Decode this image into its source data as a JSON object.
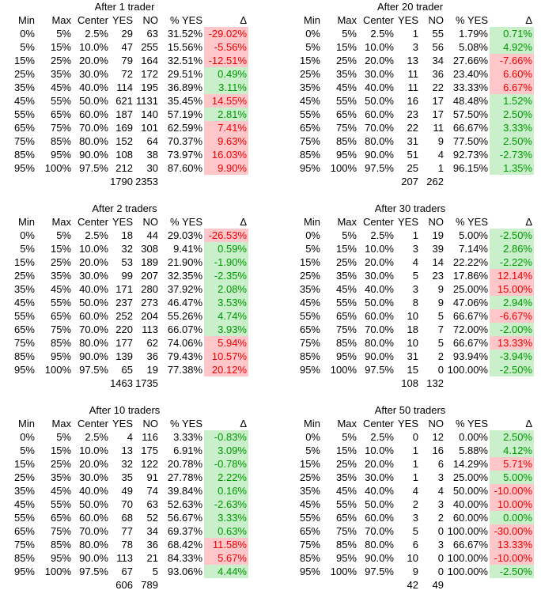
{
  "columns": [
    "Min",
    "Max",
    "Center",
    "YES",
    "NO",
    "% YES",
    "Δ"
  ],
  "colors": {
    "delta_good_bg": "#c9f0ca",
    "delta_good_text": "#009800",
    "delta_bad_bg": "#ffc7ca",
    "delta_bad_text": "#ee0000"
  },
  "tables": [
    {
      "title": "After 1 trader",
      "rows": [
        {
          "min": "0%",
          "max": "5%",
          "center": "2.5%",
          "yes": "29",
          "no": "63",
          "pct_yes": "31.52%",
          "delta": "-29.02%",
          "state": "bad"
        },
        {
          "min": "5%",
          "max": "15%",
          "center": "10.0%",
          "yes": "47",
          "no": "255",
          "pct_yes": "15.56%",
          "delta": "-5.56%",
          "state": "bad"
        },
        {
          "min": "15%",
          "max": "25%",
          "center": "20.0%",
          "yes": "79",
          "no": "164",
          "pct_yes": "32.51%",
          "delta": "-12.51%",
          "state": "bad"
        },
        {
          "min": "25%",
          "max": "35%",
          "center": "30.0%",
          "yes": "72",
          "no": "172",
          "pct_yes": "29.51%",
          "delta": "0.49%",
          "state": "good"
        },
        {
          "min": "35%",
          "max": "45%",
          "center": "40.0%",
          "yes": "114",
          "no": "195",
          "pct_yes": "36.89%",
          "delta": "3.11%",
          "state": "good"
        },
        {
          "min": "45%",
          "max": "55%",
          "center": "50.0%",
          "yes": "621",
          "no": "1131",
          "pct_yes": "35.45%",
          "delta": "14.55%",
          "state": "bad"
        },
        {
          "min": "55%",
          "max": "65%",
          "center": "60.0%",
          "yes": "187",
          "no": "140",
          "pct_yes": "57.19%",
          "delta": "2.81%",
          "state": "good"
        },
        {
          "min": "65%",
          "max": "75%",
          "center": "70.0%",
          "yes": "169",
          "no": "101",
          "pct_yes": "62.59%",
          "delta": "7.41%",
          "state": "bad"
        },
        {
          "min": "75%",
          "max": "85%",
          "center": "80.0%",
          "yes": "152",
          "no": "64",
          "pct_yes": "70.37%",
          "delta": "9.63%",
          "state": "bad"
        },
        {
          "min": "85%",
          "max": "95%",
          "center": "90.0%",
          "yes": "108",
          "no": "38",
          "pct_yes": "73.97%",
          "delta": "16.03%",
          "state": "bad"
        },
        {
          "min": "95%",
          "max": "100%",
          "center": "97.5%",
          "yes": "212",
          "no": "30",
          "pct_yes": "87.60%",
          "delta": "9.90%",
          "state": "bad"
        }
      ],
      "totals": {
        "yes": "1790",
        "no": "2353"
      }
    },
    {
      "title": "After 20 trader",
      "rows": [
        {
          "min": "0%",
          "max": "5%",
          "center": "2.5%",
          "yes": "1",
          "no": "55",
          "pct_yes": "1.79%",
          "delta": "0.71%",
          "state": "good"
        },
        {
          "min": "5%",
          "max": "15%",
          "center": "10.0%",
          "yes": "3",
          "no": "56",
          "pct_yes": "5.08%",
          "delta": "4.92%",
          "state": "good"
        },
        {
          "min": "15%",
          "max": "25%",
          "center": "20.0%",
          "yes": "13",
          "no": "34",
          "pct_yes": "27.66%",
          "delta": "-7.66%",
          "state": "bad"
        },
        {
          "min": "25%",
          "max": "35%",
          "center": "30.0%",
          "yes": "11",
          "no": "36",
          "pct_yes": "23.40%",
          "delta": "6.60%",
          "state": "bad"
        },
        {
          "min": "35%",
          "max": "45%",
          "center": "40.0%",
          "yes": "11",
          "no": "22",
          "pct_yes": "33.33%",
          "delta": "6.67%",
          "state": "bad"
        },
        {
          "min": "45%",
          "max": "55%",
          "center": "50.0%",
          "yes": "16",
          "no": "17",
          "pct_yes": "48.48%",
          "delta": "1.52%",
          "state": "good"
        },
        {
          "min": "55%",
          "max": "65%",
          "center": "60.0%",
          "yes": "23",
          "no": "17",
          "pct_yes": "57.50%",
          "delta": "2.50%",
          "state": "good"
        },
        {
          "min": "65%",
          "max": "75%",
          "center": "70.0%",
          "yes": "22",
          "no": "11",
          "pct_yes": "66.67%",
          "delta": "3.33%",
          "state": "good"
        },
        {
          "min": "75%",
          "max": "85%",
          "center": "80.0%",
          "yes": "31",
          "no": "9",
          "pct_yes": "77.50%",
          "delta": "2.50%",
          "state": "good"
        },
        {
          "min": "85%",
          "max": "95%",
          "center": "90.0%",
          "yes": "51",
          "no": "4",
          "pct_yes": "92.73%",
          "delta": "-2.73%",
          "state": "good"
        },
        {
          "min": "95%",
          "max": "100%",
          "center": "97.5%",
          "yes": "25",
          "no": "1",
          "pct_yes": "96.15%",
          "delta": "1.35%",
          "state": "good"
        }
      ],
      "totals": {
        "yes": "207",
        "no": "262"
      }
    },
    {
      "title": "After 2 traders",
      "rows": [
        {
          "min": "0%",
          "max": "5%",
          "center": "2.5%",
          "yes": "18",
          "no": "44",
          "pct_yes": "29.03%",
          "delta": "-26.53%",
          "state": "bad"
        },
        {
          "min": "5%",
          "max": "15%",
          "center": "10.0%",
          "yes": "32",
          "no": "308",
          "pct_yes": "9.41%",
          "delta": "0.59%",
          "state": "good"
        },
        {
          "min": "15%",
          "max": "25%",
          "center": "20.0%",
          "yes": "53",
          "no": "189",
          "pct_yes": "21.90%",
          "delta": "-1.90%",
          "state": "good"
        },
        {
          "min": "25%",
          "max": "35%",
          "center": "30.0%",
          "yes": "99",
          "no": "207",
          "pct_yes": "32.35%",
          "delta": "-2.35%",
          "state": "good"
        },
        {
          "min": "35%",
          "max": "45%",
          "center": "40.0%",
          "yes": "171",
          "no": "280",
          "pct_yes": "37.92%",
          "delta": "2.08%",
          "state": "good"
        },
        {
          "min": "45%",
          "max": "55%",
          "center": "50.0%",
          "yes": "237",
          "no": "273",
          "pct_yes": "46.47%",
          "delta": "3.53%",
          "state": "good"
        },
        {
          "min": "55%",
          "max": "65%",
          "center": "60.0%",
          "yes": "252",
          "no": "204",
          "pct_yes": "55.26%",
          "delta": "4.74%",
          "state": "good"
        },
        {
          "min": "65%",
          "max": "75%",
          "center": "70.0%",
          "yes": "220",
          "no": "113",
          "pct_yes": "66.07%",
          "delta": "3.93%",
          "state": "good"
        },
        {
          "min": "75%",
          "max": "85%",
          "center": "80.0%",
          "yes": "177",
          "no": "62",
          "pct_yes": "74.06%",
          "delta": "5.94%",
          "state": "bad"
        },
        {
          "min": "85%",
          "max": "95%",
          "center": "90.0%",
          "yes": "139",
          "no": "36",
          "pct_yes": "79.43%",
          "delta": "10.57%",
          "state": "bad"
        },
        {
          "min": "95%",
          "max": "100%",
          "center": "97.5%",
          "yes": "65",
          "no": "19",
          "pct_yes": "77.38%",
          "delta": "20.12%",
          "state": "bad"
        }
      ],
      "totals": {
        "yes": "1463",
        "no": "1735"
      }
    },
    {
      "title": "After 30 traders",
      "rows": [
        {
          "min": "0%",
          "max": "5%",
          "center": "2.5%",
          "yes": "1",
          "no": "19",
          "pct_yes": "5.00%",
          "delta": "-2.50%",
          "state": "good"
        },
        {
          "min": "5%",
          "max": "15%",
          "center": "10.0%",
          "yes": "3",
          "no": "39",
          "pct_yes": "7.14%",
          "delta": "2.86%",
          "state": "good"
        },
        {
          "min": "15%",
          "max": "25%",
          "center": "20.0%",
          "yes": "4",
          "no": "14",
          "pct_yes": "22.22%",
          "delta": "-2.22%",
          "state": "good"
        },
        {
          "min": "25%",
          "max": "35%",
          "center": "30.0%",
          "yes": "5",
          "no": "23",
          "pct_yes": "17.86%",
          "delta": "12.14%",
          "state": "bad"
        },
        {
          "min": "35%",
          "max": "45%",
          "center": "40.0%",
          "yes": "3",
          "no": "9",
          "pct_yes": "25.00%",
          "delta": "15.00%",
          "state": "bad"
        },
        {
          "min": "45%",
          "max": "55%",
          "center": "50.0%",
          "yes": "8",
          "no": "9",
          "pct_yes": "47.06%",
          "delta": "2.94%",
          "state": "good"
        },
        {
          "min": "55%",
          "max": "65%",
          "center": "60.0%",
          "yes": "10",
          "no": "5",
          "pct_yes": "66.67%",
          "delta": "-6.67%",
          "state": "bad"
        },
        {
          "min": "65%",
          "max": "75%",
          "center": "70.0%",
          "yes": "18",
          "no": "7",
          "pct_yes": "72.00%",
          "delta": "-2.00%",
          "state": "good"
        },
        {
          "min": "75%",
          "max": "85%",
          "center": "80.0%",
          "yes": "10",
          "no": "5",
          "pct_yes": "66.67%",
          "delta": "13.33%",
          "state": "bad"
        },
        {
          "min": "85%",
          "max": "95%",
          "center": "90.0%",
          "yes": "31",
          "no": "2",
          "pct_yes": "93.94%",
          "delta": "-3.94%",
          "state": "good"
        },
        {
          "min": "95%",
          "max": "100%",
          "center": "97.5%",
          "yes": "15",
          "no": "0",
          "pct_yes": "100.00%",
          "delta": "-2.50%",
          "state": "good"
        }
      ],
      "totals": {
        "yes": "108",
        "no": "132"
      }
    },
    {
      "title": "After 10 traders",
      "rows": [
        {
          "min": "0%",
          "max": "5%",
          "center": "2.5%",
          "yes": "4",
          "no": "116",
          "pct_yes": "3.33%",
          "delta": "-0.83%",
          "state": "good"
        },
        {
          "min": "5%",
          "max": "15%",
          "center": "10.0%",
          "yes": "13",
          "no": "175",
          "pct_yes": "6.91%",
          "delta": "3.09%",
          "state": "good"
        },
        {
          "min": "15%",
          "max": "25%",
          "center": "20.0%",
          "yes": "32",
          "no": "122",
          "pct_yes": "20.78%",
          "delta": "-0.78%",
          "state": "good"
        },
        {
          "min": "25%",
          "max": "35%",
          "center": "30.0%",
          "yes": "35",
          "no": "91",
          "pct_yes": "27.78%",
          "delta": "2.22%",
          "state": "good"
        },
        {
          "min": "35%",
          "max": "45%",
          "center": "40.0%",
          "yes": "49",
          "no": "74",
          "pct_yes": "39.84%",
          "delta": "0.16%",
          "state": "good"
        },
        {
          "min": "45%",
          "max": "55%",
          "center": "50.0%",
          "yes": "70",
          "no": "63",
          "pct_yes": "52.63%",
          "delta": "-2.63%",
          "state": "good"
        },
        {
          "min": "55%",
          "max": "65%",
          "center": "60.0%",
          "yes": "68",
          "no": "52",
          "pct_yes": "56.67%",
          "delta": "3.33%",
          "state": "good"
        },
        {
          "min": "65%",
          "max": "75%",
          "center": "70.0%",
          "yes": "77",
          "no": "34",
          "pct_yes": "69.37%",
          "delta": "0.63%",
          "state": "good"
        },
        {
          "min": "75%",
          "max": "85%",
          "center": "80.0%",
          "yes": "78",
          "no": "36",
          "pct_yes": "68.42%",
          "delta": "11.58%",
          "state": "bad"
        },
        {
          "min": "85%",
          "max": "95%",
          "center": "90.0%",
          "yes": "113",
          "no": "21",
          "pct_yes": "84.33%",
          "delta": "5.67%",
          "state": "bad"
        },
        {
          "min": "95%",
          "max": "100%",
          "center": "97.5%",
          "yes": "67",
          "no": "5",
          "pct_yes": "93.06%",
          "delta": "4.44%",
          "state": "good"
        }
      ],
      "totals": {
        "yes": "606",
        "no": "789"
      }
    },
    {
      "title": "After 50 traders",
      "rows": [
        {
          "min": "0%",
          "max": "5%",
          "center": "2.5%",
          "yes": "0",
          "no": "12",
          "pct_yes": "0.00%",
          "delta": "2.50%",
          "state": "good"
        },
        {
          "min": "5%",
          "max": "15%",
          "center": "10.0%",
          "yes": "1",
          "no": "16",
          "pct_yes": "5.88%",
          "delta": "4.12%",
          "state": "good"
        },
        {
          "min": "15%",
          "max": "25%",
          "center": "20.0%",
          "yes": "1",
          "no": "6",
          "pct_yes": "14.29%",
          "delta": "5.71%",
          "state": "bad"
        },
        {
          "min": "25%",
          "max": "35%",
          "center": "30.0%",
          "yes": "1",
          "no": "3",
          "pct_yes": "25.00%",
          "delta": "5.00%",
          "state": "good"
        },
        {
          "min": "35%",
          "max": "45%",
          "center": "40.0%",
          "yes": "4",
          "no": "4",
          "pct_yes": "50.00%",
          "delta": "-10.00%",
          "state": "bad"
        },
        {
          "min": "45%",
          "max": "55%",
          "center": "50.0%",
          "yes": "2",
          "no": "3",
          "pct_yes": "40.00%",
          "delta": "10.00%",
          "state": "bad"
        },
        {
          "min": "55%",
          "max": "65%",
          "center": "60.0%",
          "yes": "3",
          "no": "2",
          "pct_yes": "60.00%",
          "delta": "0.00%",
          "state": "good"
        },
        {
          "min": "65%",
          "max": "75%",
          "center": "70.0%",
          "yes": "5",
          "no": "0",
          "pct_yes": "100.00%",
          "delta": "-30.00%",
          "state": "bad"
        },
        {
          "min": "75%",
          "max": "85%",
          "center": "80.0%",
          "yes": "6",
          "no": "3",
          "pct_yes": "66.67%",
          "delta": "13.33%",
          "state": "bad"
        },
        {
          "min": "85%",
          "max": "95%",
          "center": "90.0%",
          "yes": "10",
          "no": "0",
          "pct_yes": "100.00%",
          "delta": "-10.00%",
          "state": "bad"
        },
        {
          "min": "95%",
          "max": "100%",
          "center": "97.5%",
          "yes": "9",
          "no": "0",
          "pct_yes": "100.00%",
          "delta": "-2.50%",
          "state": "good"
        }
      ],
      "totals": {
        "yes": "42",
        "no": "49"
      }
    }
  ]
}
